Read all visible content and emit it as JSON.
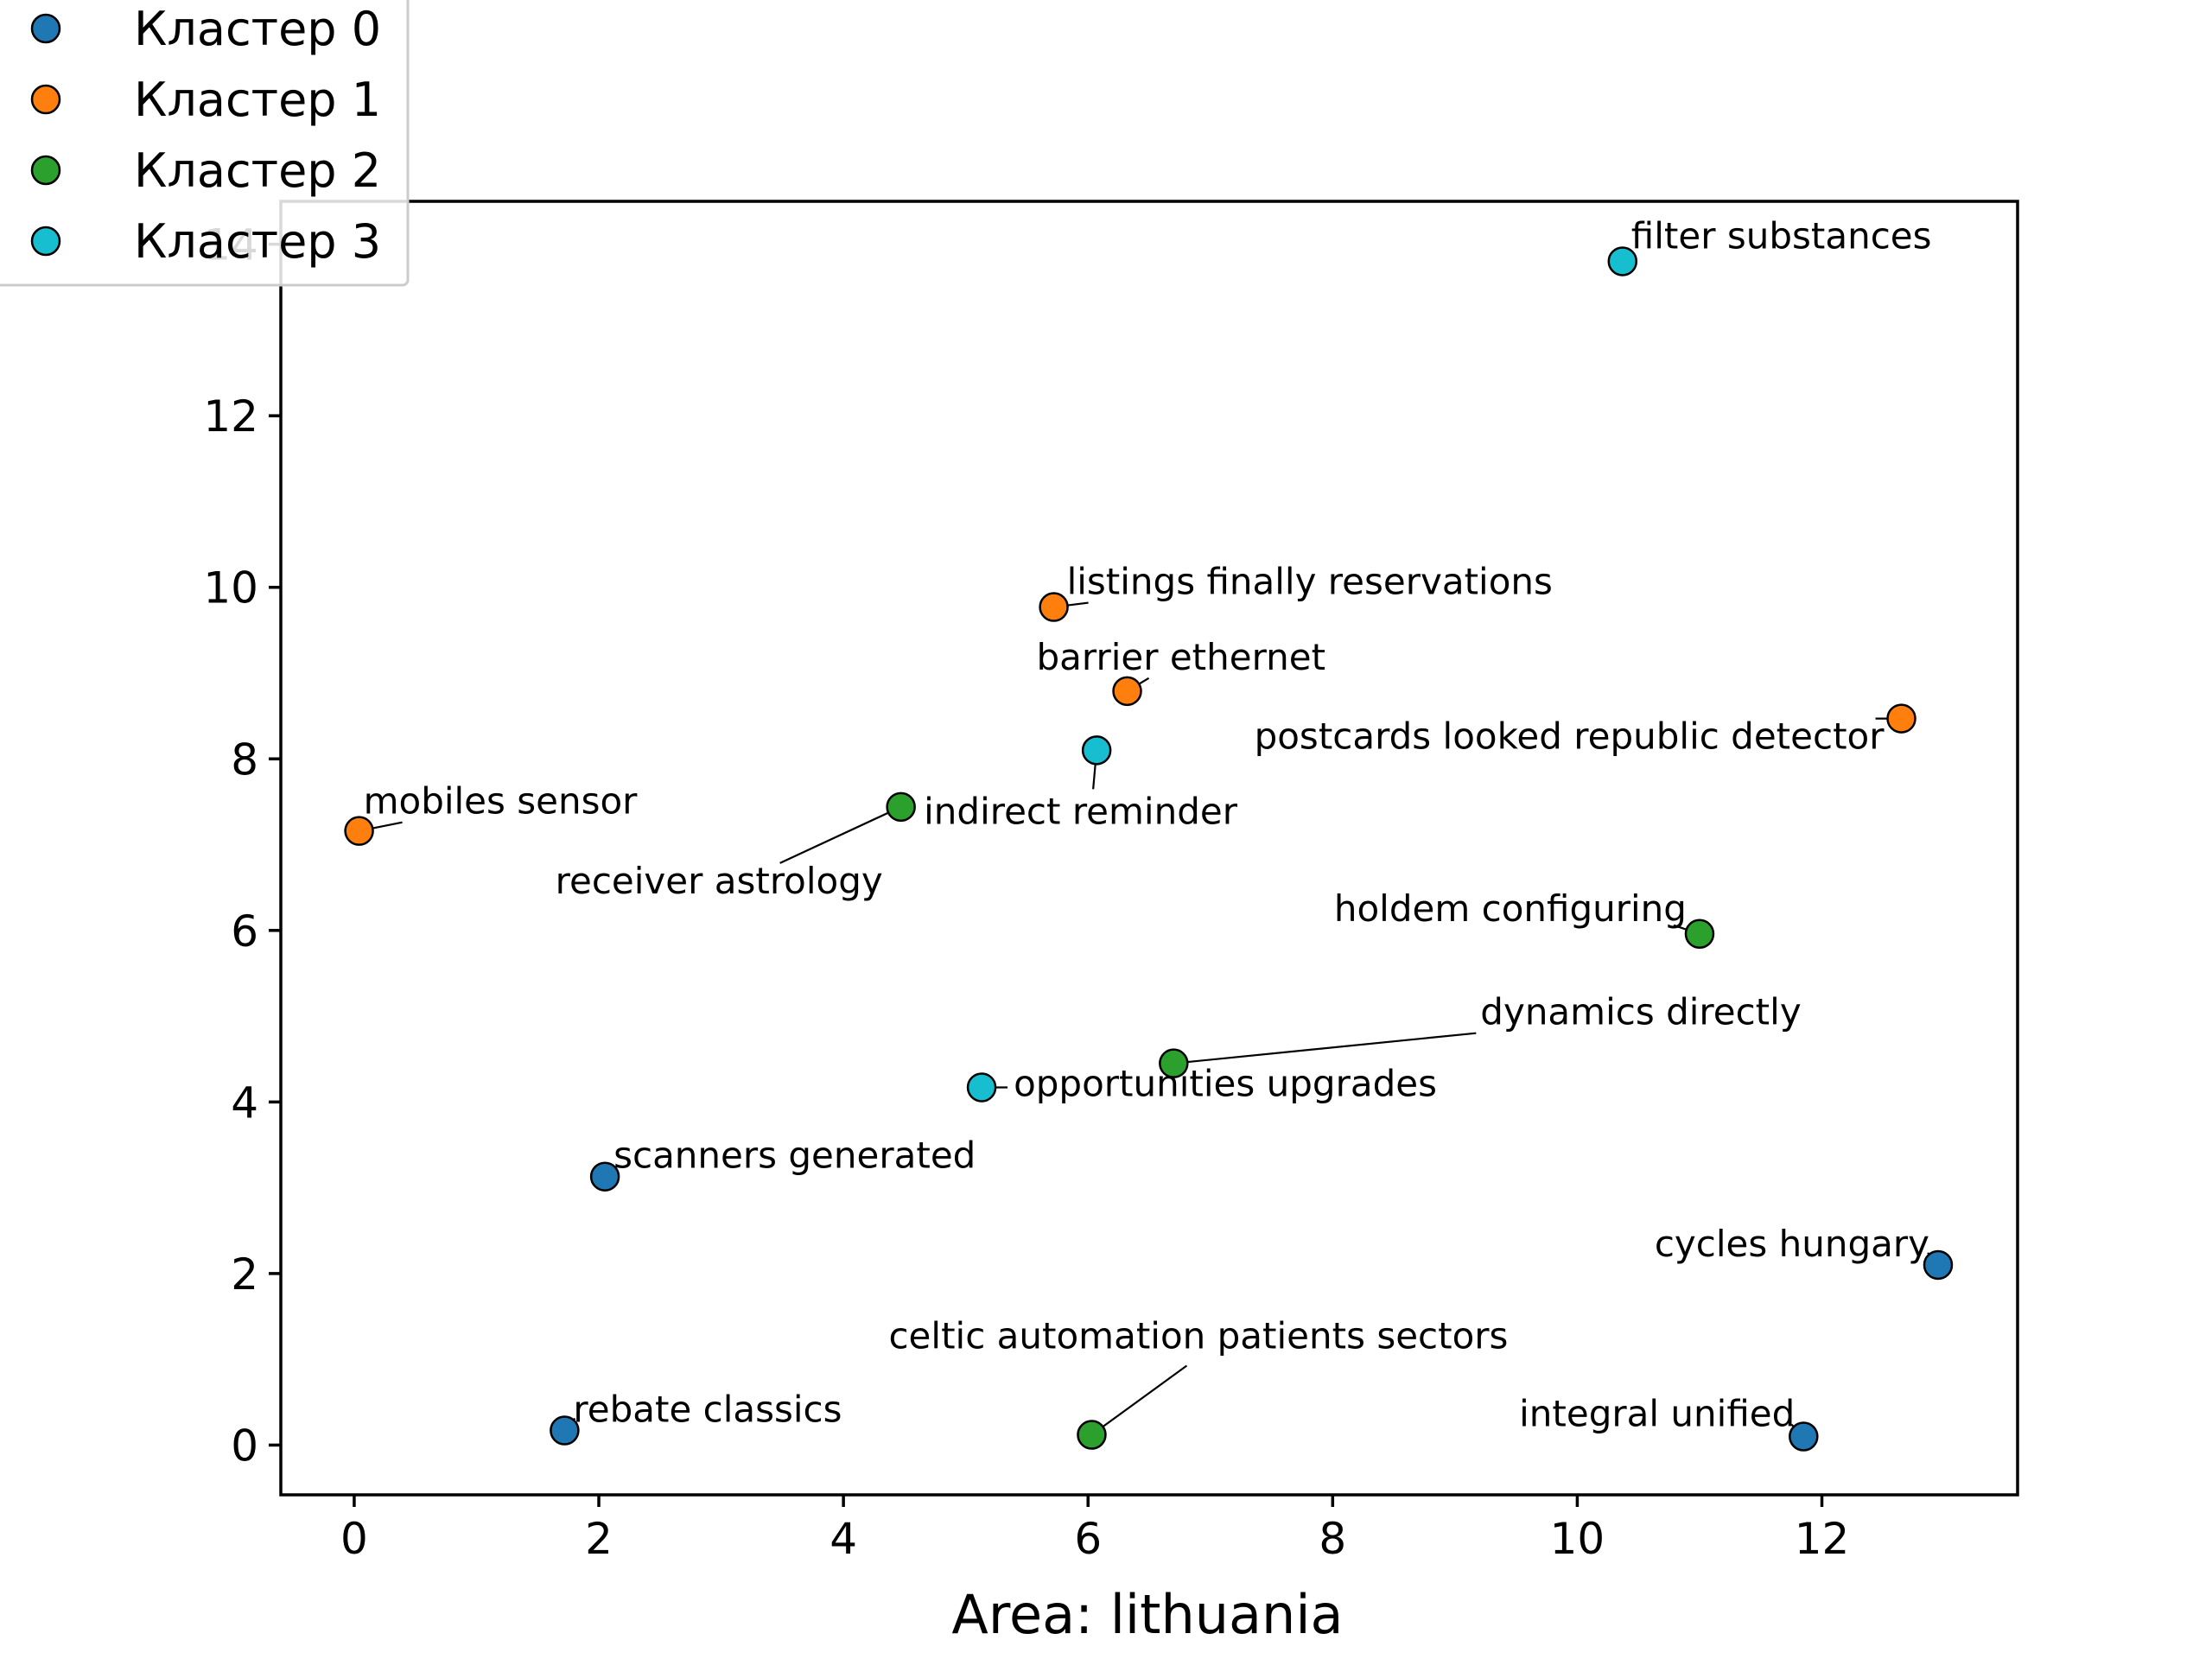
{
  "chart_data": {
    "type": "scatter",
    "xlabel": "Area: lithuania",
    "ylabel": "",
    "xlim": [
      -0.6,
      13.6
    ],
    "ylim": [
      -0.58,
      14.5
    ],
    "xticks": [
      0,
      2,
      4,
      6,
      8,
      10,
      12
    ],
    "yticks": [
      0,
      2,
      4,
      6,
      8,
      10,
      12,
      14
    ],
    "grid": false,
    "legend_position": "top-left",
    "series": [
      {
        "name": "Кластер 0",
        "color": "#1f77b4",
        "points": [
          {
            "x": 2.05,
            "y": 3.13,
            "label": "scanners generated"
          },
          {
            "x": 12.95,
            "y": 2.1,
            "label": "cycles hungary"
          },
          {
            "x": 1.72,
            "y": 0.17,
            "label": "rebate classics"
          },
          {
            "x": 11.85,
            "y": 0.1,
            "label": "integral unified"
          }
        ]
      },
      {
        "name": "Кластер 1",
        "color": "#ff7f0e",
        "points": [
          {
            "x": 5.72,
            "y": 9.77,
            "label": "listings finally reservations"
          },
          {
            "x": 6.32,
            "y": 8.79,
            "label": "barrier ethernet"
          },
          {
            "x": 12.65,
            "y": 8.47,
            "label": "postcards looked republic detector"
          },
          {
            "x": 0.04,
            "y": 7.16,
            "label": "mobiles sensor"
          }
        ]
      },
      {
        "name": "Кластер 2",
        "color": "#2ca02c",
        "points": [
          {
            "x": 4.47,
            "y": 7.44,
            "label": "receiver astrology"
          },
          {
            "x": 11.0,
            "y": 5.96,
            "label": "holdem configuring"
          },
          {
            "x": 6.7,
            "y": 4.45,
            "label": "dynamics directly"
          },
          {
            "x": 6.03,
            "y": 0.12,
            "label": "celtic automation patients sectors"
          }
        ]
      },
      {
        "name": "Кластер 3",
        "color": "#17becf",
        "points": [
          {
            "x": 10.37,
            "y": 13.8,
            "label": "filter substances"
          },
          {
            "x": 6.07,
            "y": 8.1,
            "label": "indirect reminder"
          },
          {
            "x": 5.13,
            "y": 4.17,
            "label": "opportunities upgrades"
          }
        ]
      }
    ]
  }
}
